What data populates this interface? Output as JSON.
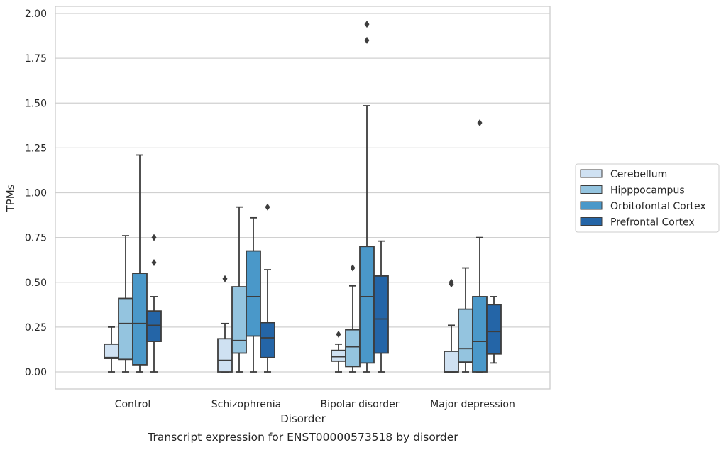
{
  "chart_data": {
    "type": "box",
    "title": "",
    "caption": "Transcript expression for ENST00000573518 by disorder",
    "xlabel": "Disorder",
    "ylabel": "TPMs",
    "ylim": [
      -0.095,
      2.04
    ],
    "yticks": [
      "0.00",
      "0.25",
      "0.50",
      "0.75",
      "1.00",
      "1.25",
      "1.50",
      "1.75",
      "2.00"
    ],
    "ytick_values": [
      0,
      0.25,
      0.5,
      0.75,
      1.0,
      1.25,
      1.5,
      1.75,
      2.0
    ],
    "grid": "horizontal",
    "legend_position": "right",
    "categories": [
      "Control",
      "Schizophrenia",
      "Bipolar disorder",
      "Major depression"
    ],
    "series": [
      {
        "name": "Cerebellum",
        "color": "#cfe1f2",
        "boxes": [
          {
            "whisker_low": 0.0,
            "q1": 0.075,
            "median": 0.08,
            "q3": 0.155,
            "whisker_high": 0.25,
            "outliers": []
          },
          {
            "whisker_low": 0.0,
            "q1": 0.0,
            "median": 0.065,
            "q3": 0.185,
            "whisker_high": 0.27,
            "outliers": [
              0.52
            ]
          },
          {
            "whisker_low": 0.0,
            "q1": 0.06,
            "median": 0.085,
            "q3": 0.12,
            "whisker_high": 0.155,
            "outliers": [
              0.21
            ]
          },
          {
            "whisker_low": 0.0,
            "q1": 0.0,
            "median": 0.0,
            "q3": 0.115,
            "whisker_high": 0.26,
            "outliers": [
              0.49,
              0.5
            ]
          }
        ]
      },
      {
        "name": "Hipppocampus",
        "color": "#94c4df",
        "boxes": [
          {
            "whisker_low": 0.0,
            "q1": 0.07,
            "median": 0.27,
            "q3": 0.41,
            "whisker_high": 0.76,
            "outliers": []
          },
          {
            "whisker_low": 0.0,
            "q1": 0.105,
            "median": 0.175,
            "q3": 0.475,
            "whisker_high": 0.92,
            "outliers": []
          },
          {
            "whisker_low": 0.0,
            "q1": 0.03,
            "median": 0.14,
            "q3": 0.235,
            "whisker_high": 0.48,
            "outliers": [
              0.58
            ]
          },
          {
            "whisker_low": 0.0,
            "q1": 0.055,
            "median": 0.13,
            "q3": 0.35,
            "whisker_high": 0.58,
            "outliers": []
          }
        ]
      },
      {
        "name": "Orbitofontal Cortex",
        "color": "#4a98c9",
        "boxes": [
          {
            "whisker_low": 0.0,
            "q1": 0.04,
            "median": 0.27,
            "q3": 0.55,
            "whisker_high": 1.21,
            "outliers": []
          },
          {
            "whisker_low": 0.0,
            "q1": 0.2,
            "median": 0.42,
            "q3": 0.675,
            "whisker_high": 0.86,
            "outliers": []
          },
          {
            "whisker_low": 0.0,
            "q1": 0.05,
            "median": 0.42,
            "q3": 0.7,
            "whisker_high": 1.485,
            "outliers": [
              1.85,
              1.94
            ]
          },
          {
            "whisker_low": 0.0,
            "q1": 0.0,
            "median": 0.17,
            "q3": 0.42,
            "whisker_high": 0.75,
            "outliers": [
              1.39
            ]
          }
        ]
      },
      {
        "name": "Prefrontal Cortex",
        "color": "#2465a7",
        "boxes": [
          {
            "whisker_low": 0.0,
            "q1": 0.17,
            "median": 0.26,
            "q3": 0.34,
            "whisker_high": 0.42,
            "outliers": [
              0.61,
              0.75
            ]
          },
          {
            "whisker_low": 0.0,
            "q1": 0.08,
            "median": 0.19,
            "q3": 0.275,
            "whisker_high": 0.57,
            "outliers": [
              0.92
            ]
          },
          {
            "whisker_low": 0.0,
            "q1": 0.105,
            "median": 0.295,
            "q3": 0.535,
            "whisker_high": 0.73,
            "outliers": []
          },
          {
            "whisker_low": 0.05,
            "q1": 0.1,
            "median": 0.225,
            "q3": 0.375,
            "whisker_high": 0.42,
            "outliers": []
          }
        ]
      }
    ]
  }
}
